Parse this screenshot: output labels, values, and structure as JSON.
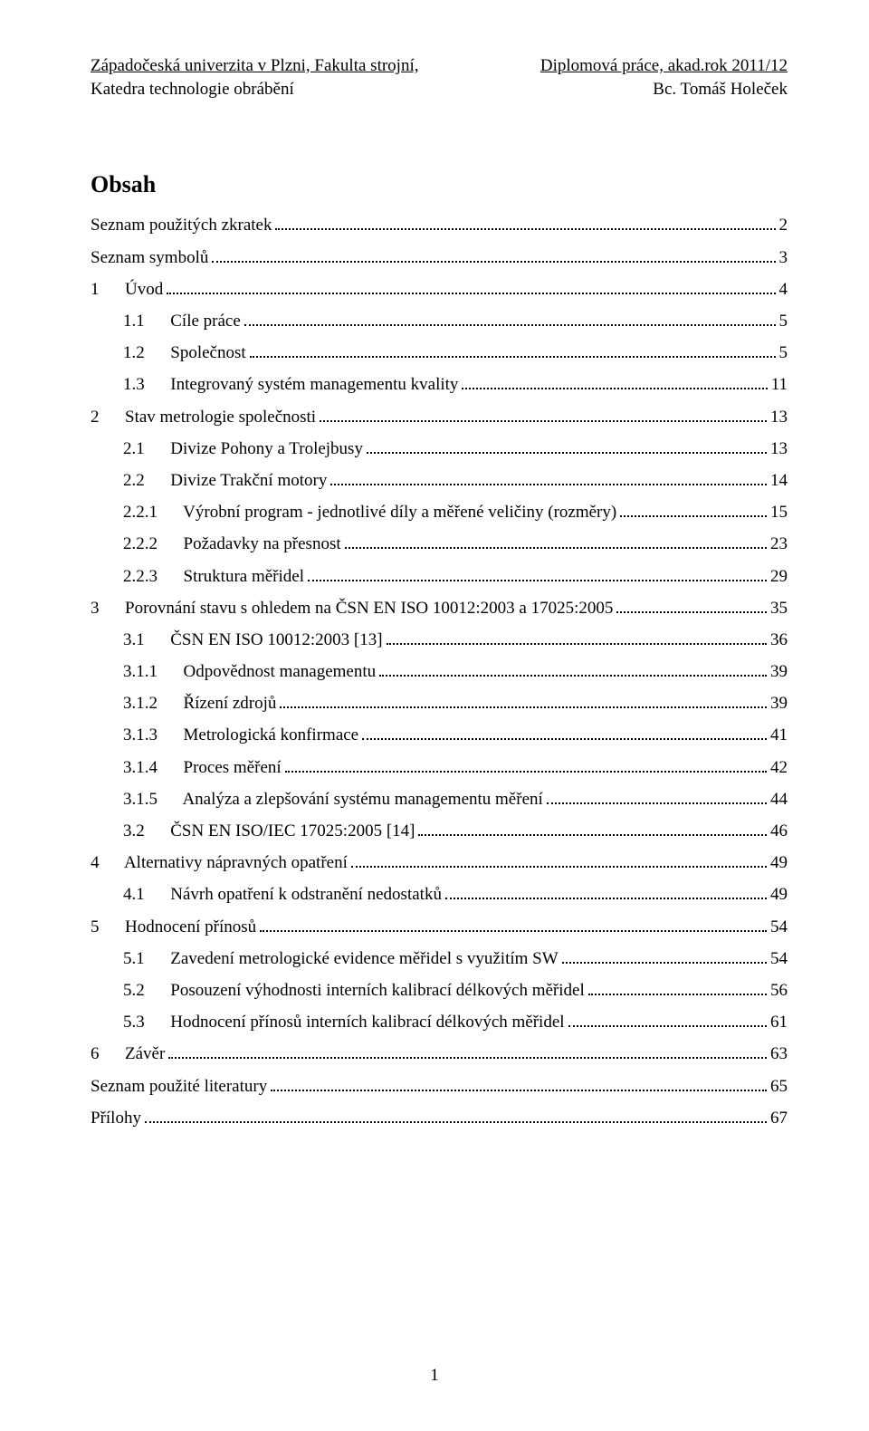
{
  "header": {
    "left_line1": "Západočeská univerzita v Plzni, Fakulta strojní,",
    "left_line2": "Katedra technologie obrábění",
    "right_line1": "Diplomová práce, akad.rok 2011/12",
    "right_line2": "Bc. Tomáš Holeček"
  },
  "title": "Obsah",
  "toc": [
    {
      "level": 0,
      "label": "Seznam použitých zkratek",
      "page": "2"
    },
    {
      "level": 0,
      "label": "Seznam symbolů",
      "page": "3"
    },
    {
      "level": 0,
      "label": "1\tÚvod",
      "page": "4"
    },
    {
      "level": 1,
      "label": "1.1\tCíle práce",
      "page": "5"
    },
    {
      "level": 1,
      "label": "1.2\tSpolečnost",
      "page": "5"
    },
    {
      "level": 1,
      "label": "1.3\tIntegrovaný systém managementu kvality",
      "page": "11"
    },
    {
      "level": 0,
      "label": "2\tStav metrologie společnosti",
      "page": "13"
    },
    {
      "level": 1,
      "label": "2.1\tDivize Pohony a Trolejbusy",
      "page": "13"
    },
    {
      "level": 1,
      "label": "2.2\tDivize Trakční motory",
      "page": "14"
    },
    {
      "level": 2,
      "label": "2.2.1\tVýrobní program - jednotlivé díly a měřené veličiny (rozměry)",
      "page": "15"
    },
    {
      "level": 2,
      "label": "2.2.2\tPožadavky na přesnost",
      "page": "23"
    },
    {
      "level": 2,
      "label": "2.2.3\tStruktura měřidel",
      "page": "29"
    },
    {
      "level": 0,
      "label": "3\tPorovnání stavu s ohledem na ČSN EN ISO 10012:2003 a 17025:2005",
      "page": "35"
    },
    {
      "level": 1,
      "label": "3.1\tČSN EN ISO 10012:2003 [13]",
      "page": "36"
    },
    {
      "level": 2,
      "label": "3.1.1\tOdpovědnost managementu",
      "page": "39"
    },
    {
      "level": 2,
      "label": "3.1.2\tŘízení zdrojů",
      "page": "39"
    },
    {
      "level": 2,
      "label": "3.1.3\tMetrologická konfirmace",
      "page": "41"
    },
    {
      "level": 2,
      "label": "3.1.4\tProces měření",
      "page": "42"
    },
    {
      "level": 2,
      "label": "3.1.5\tAnalýza a zlepšování systému managementu měření",
      "page": "44"
    },
    {
      "level": 1,
      "label": "3.2\tČSN EN ISO/IEC 17025:2005 [14]",
      "page": "46"
    },
    {
      "level": 0,
      "label": "4\tAlternativy nápravných opatření",
      "page": "49"
    },
    {
      "level": 1,
      "label": "4.1\tNávrh opatření k odstranění nedostatků",
      "page": "49"
    },
    {
      "level": 0,
      "label": "5\tHodnocení přínosů",
      "page": "54"
    },
    {
      "level": 1,
      "label": "5.1\tZavedení metrologické evidence měřidel s využitím SW",
      "page": "54"
    },
    {
      "level": 1,
      "label": "5.2\tPosouzení výhodnosti interních kalibrací délkových měřidel",
      "page": "56"
    },
    {
      "level": 1,
      "label": "5.3\tHodnocení přínosů interních kalibrací délkových měřidel",
      "page": "61"
    },
    {
      "level": 0,
      "label": "6\tZávěr",
      "page": "63"
    },
    {
      "level": 0,
      "label": "Seznam použité literatury",
      "page": "65"
    },
    {
      "level": 0,
      "label": "Přílohy",
      "page": "67"
    }
  ],
  "page_number": "1"
}
